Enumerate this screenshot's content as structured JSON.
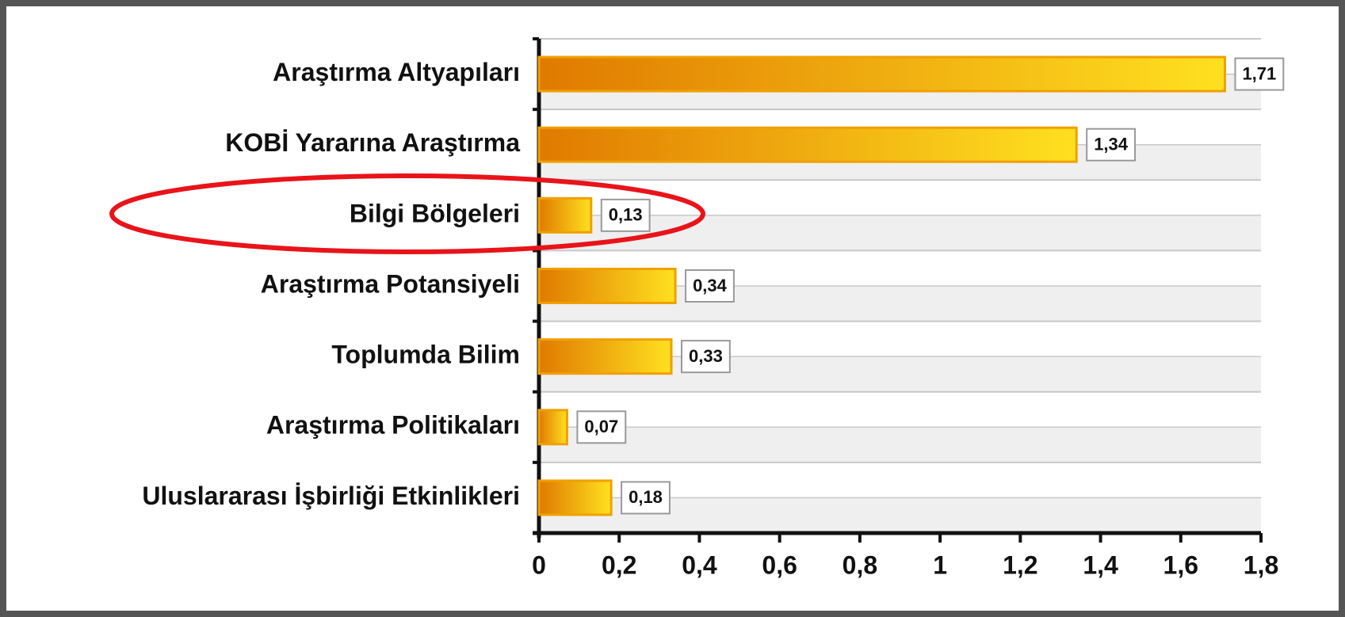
{
  "chart_data": {
    "type": "bar",
    "orientation": "horizontal",
    "categories": [
      "Araştırma Altyapıları",
      "KOBİ Yararına Araştırma",
      "Bilgi Bölgeleri",
      "Araştırma Potansiyeli",
      "Toplumda Bilim",
      "Araştırma Politikaları",
      "Uluslararası İşbirliği Etkinlikleri"
    ],
    "values": [
      1.71,
      1.34,
      0.13,
      0.34,
      0.33,
      0.07,
      0.18
    ],
    "value_labels": [
      "1,71",
      "1,34",
      "0,13",
      "0,34",
      "0,33",
      "0,07",
      "0,18"
    ],
    "color": "#f0a000",
    "xlim": [
      0,
      1.8
    ],
    "xticks": [
      0,
      {
        "value": 0.2,
        "label": "0,2"
      },
      {
        "value": 0.4,
        "label": "0,4"
      },
      {
        "value": 0.6,
        "label": "0,6"
      },
      {
        "value": 0.8,
        "label": "0,8"
      },
      1,
      {
        "value": 1.2,
        "label": "1,2"
      },
      {
        "value": 1.4,
        "label": "1,4"
      },
      {
        "value": 1.6,
        "label": "1,6"
      },
      {
        "value": 1.8,
        "label": "1,8"
      }
    ],
    "grid": true
  }
}
